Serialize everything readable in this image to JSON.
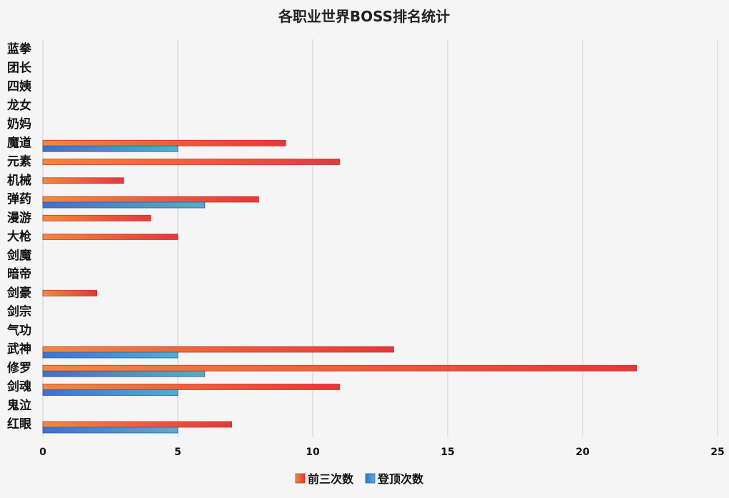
{
  "chart_data": {
    "type": "bar",
    "orientation": "horizontal",
    "title": "各职业世界BOSS排名统计",
    "categories": [
      "蓝拳",
      "团长",
      "四姨",
      "龙女",
      "奶妈",
      "魔道",
      "元素",
      "机械",
      "弹药",
      "漫游",
      "大枪",
      "剑魔",
      "暗帝",
      "剑豪",
      "剑宗",
      "气功",
      "武神",
      "修罗",
      "剑魂",
      "鬼泣",
      "红眼"
    ],
    "series": [
      {
        "name": "前三次数",
        "values": [
          0,
          0,
          0,
          0,
          0,
          9,
          11,
          3,
          8,
          4,
          5,
          0,
          0,
          2,
          0,
          0,
          13,
          22,
          11,
          0,
          7
        ]
      },
      {
        "name": "登顶次数",
        "values": [
          0,
          0,
          0,
          0,
          0,
          5,
          0,
          0,
          6,
          0,
          0,
          0,
          0,
          0,
          0,
          0,
          5,
          6,
          5,
          0,
          5
        ]
      }
    ],
    "xlim": [
      0,
      25
    ],
    "xticks": [
      0,
      5,
      10,
      15,
      20,
      25
    ],
    "grid": true,
    "legend_position": "bottom",
    "colors": {
      "series0_start": "#f08a3a",
      "series0_end": "#e8363a",
      "series1_start": "#3f6fd4",
      "series1_end": "#4fb0cc"
    }
  }
}
